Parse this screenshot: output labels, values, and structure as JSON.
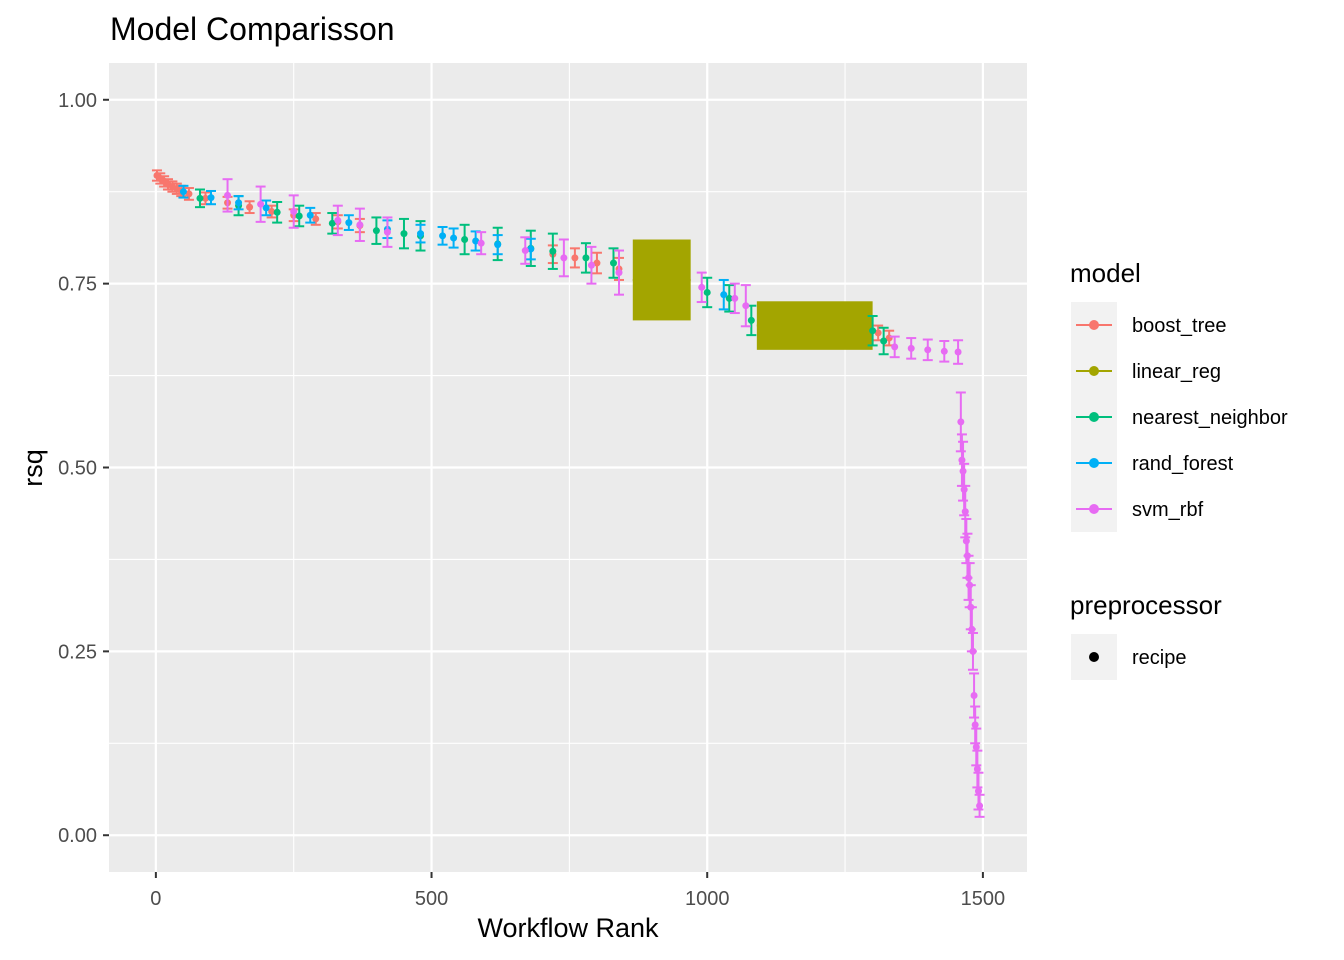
{
  "chart_data": {
    "type": "scatter",
    "title": "Model Comparisson",
    "xlabel": "Workflow Rank",
    "ylabel": "rsq",
    "xlim": [
      -85,
      1580
    ],
    "ylim": [
      -0.05,
      1.05
    ],
    "x_ticks": [
      0,
      500,
      1000,
      1500
    ],
    "x_tick_labels": [
      "0",
      "500",
      "1000",
      "1500"
    ],
    "y_ticks": [
      0,
      0.25,
      0.5,
      0.75,
      1.0
    ],
    "y_tick_labels": [
      "0.00",
      "0.25",
      "0.50",
      "0.75",
      "1.00"
    ],
    "grid": true,
    "background": "#EBEBEB",
    "legend_position": "right",
    "legend_model_title": "model",
    "legend_preprocessor_title": "preprocessor",
    "preprocessor_entries": [
      "recipe"
    ],
    "series": [
      {
        "name": "boost_tree",
        "color": "#F8766D",
        "points": [
          [
            2,
            0.897,
            0.007
          ],
          [
            8,
            0.893,
            0.007
          ],
          [
            15,
            0.889,
            0.007
          ],
          [
            22,
            0.885,
            0.007
          ],
          [
            30,
            0.882,
            0.007
          ],
          [
            38,
            0.879,
            0.007
          ],
          [
            46,
            0.876,
            0.007
          ],
          [
            60,
            0.872,
            0.008
          ],
          [
            90,
            0.866,
            0.008
          ],
          [
            130,
            0.86,
            0.008
          ],
          [
            170,
            0.854,
            0.008
          ],
          [
            210,
            0.848,
            0.008
          ],
          [
            250,
            0.843,
            0.008
          ],
          [
            290,
            0.838,
            0.008
          ],
          [
            330,
            0.834,
            0.009
          ],
          [
            370,
            0.829,
            0.009
          ],
          [
            720,
            0.79,
            0.012
          ],
          [
            760,
            0.785,
            0.013
          ],
          [
            800,
            0.778,
            0.014
          ],
          [
            840,
            0.77,
            0.015
          ],
          [
            1310,
            0.683,
            0.01
          ],
          [
            1330,
            0.676,
            0.01
          ]
        ]
      },
      {
        "name": "linear_reg",
        "color": "#A3A500",
        "band_ranges": [
          [
            865,
            970,
            0.755,
            0.055
          ],
          [
            1090,
            1300,
            0.693,
            0.033
          ]
        ]
      },
      {
        "name": "nearest_neighbor",
        "color": "#00BF7D",
        "points": [
          [
            80,
            0.866,
            0.012
          ],
          [
            150,
            0.856,
            0.013
          ],
          [
            220,
            0.847,
            0.014
          ],
          [
            260,
            0.842,
            0.014
          ],
          [
            320,
            0.832,
            0.014
          ],
          [
            400,
            0.822,
            0.018
          ],
          [
            450,
            0.818,
            0.02
          ],
          [
            480,
            0.815,
            0.02
          ],
          [
            560,
            0.81,
            0.02
          ],
          [
            620,
            0.804,
            0.022
          ],
          [
            680,
            0.798,
            0.024
          ],
          [
            720,
            0.794,
            0.024
          ],
          [
            780,
            0.785,
            0.02
          ],
          [
            830,
            0.778,
            0.02
          ],
          [
            1000,
            0.738,
            0.02
          ],
          [
            1040,
            0.73,
            0.018
          ],
          [
            1080,
            0.7,
            0.02
          ],
          [
            1300,
            0.686,
            0.02
          ],
          [
            1320,
            0.672,
            0.018
          ]
        ]
      },
      {
        "name": "rand_forest",
        "color": "#00B0F6",
        "points": [
          [
            50,
            0.875,
            0.008
          ],
          [
            100,
            0.867,
            0.009
          ],
          [
            150,
            0.86,
            0.009
          ],
          [
            200,
            0.853,
            0.01
          ],
          [
            280,
            0.843,
            0.01
          ],
          [
            350,
            0.833,
            0.01
          ],
          [
            420,
            0.824,
            0.012
          ],
          [
            480,
            0.818,
            0.012
          ],
          [
            520,
            0.815,
            0.012
          ],
          [
            540,
            0.812,
            0.013
          ],
          [
            580,
            0.808,
            0.013
          ],
          [
            620,
            0.803,
            0.013
          ],
          [
            680,
            0.797,
            0.014
          ],
          [
            1030,
            0.735,
            0.02
          ]
        ]
      },
      {
        "name": "svm_rbf",
        "color": "#E76BF3",
        "points": [
          [
            130,
            0.87,
            0.022
          ],
          [
            190,
            0.858,
            0.024
          ],
          [
            250,
            0.848,
            0.022
          ],
          [
            330,
            0.836,
            0.02
          ],
          [
            370,
            0.83,
            0.022
          ],
          [
            420,
            0.82,
            0.02
          ],
          [
            590,
            0.805,
            0.015
          ],
          [
            670,
            0.795,
            0.018
          ],
          [
            740,
            0.785,
            0.025
          ],
          [
            790,
            0.775,
            0.025
          ],
          [
            840,
            0.765,
            0.03
          ],
          [
            990,
            0.745,
            0.02
          ],
          [
            1050,
            0.73,
            0.02
          ],
          [
            1070,
            0.72,
            0.028
          ],
          [
            1340,
            0.664,
            0.014
          ],
          [
            1370,
            0.662,
            0.014
          ],
          [
            1400,
            0.66,
            0.014
          ],
          [
            1430,
            0.658,
            0.014
          ],
          [
            1455,
            0.657,
            0.016
          ],
          [
            1460,
            0.562,
            0.04
          ],
          [
            1462,
            0.51,
            0.035
          ],
          [
            1464,
            0.495,
            0.04
          ],
          [
            1466,
            0.47,
            0.035
          ],
          [
            1468,
            0.44,
            0.035
          ],
          [
            1470,
            0.4,
            0.03
          ],
          [
            1472,
            0.38,
            0.03
          ],
          [
            1474,
            0.35,
            0.03
          ],
          [
            1476,
            0.34,
            0.03
          ],
          [
            1478,
            0.31,
            0.03
          ],
          [
            1480,
            0.28,
            0.03
          ],
          [
            1482,
            0.25,
            0.025
          ],
          [
            1484,
            0.19,
            0.03
          ],
          [
            1486,
            0.15,
            0.025
          ],
          [
            1488,
            0.12,
            0.025
          ],
          [
            1490,
            0.09,
            0.025
          ],
          [
            1492,
            0.06,
            0.025
          ],
          [
            1494,
            0.04,
            0.015
          ]
        ]
      }
    ]
  }
}
